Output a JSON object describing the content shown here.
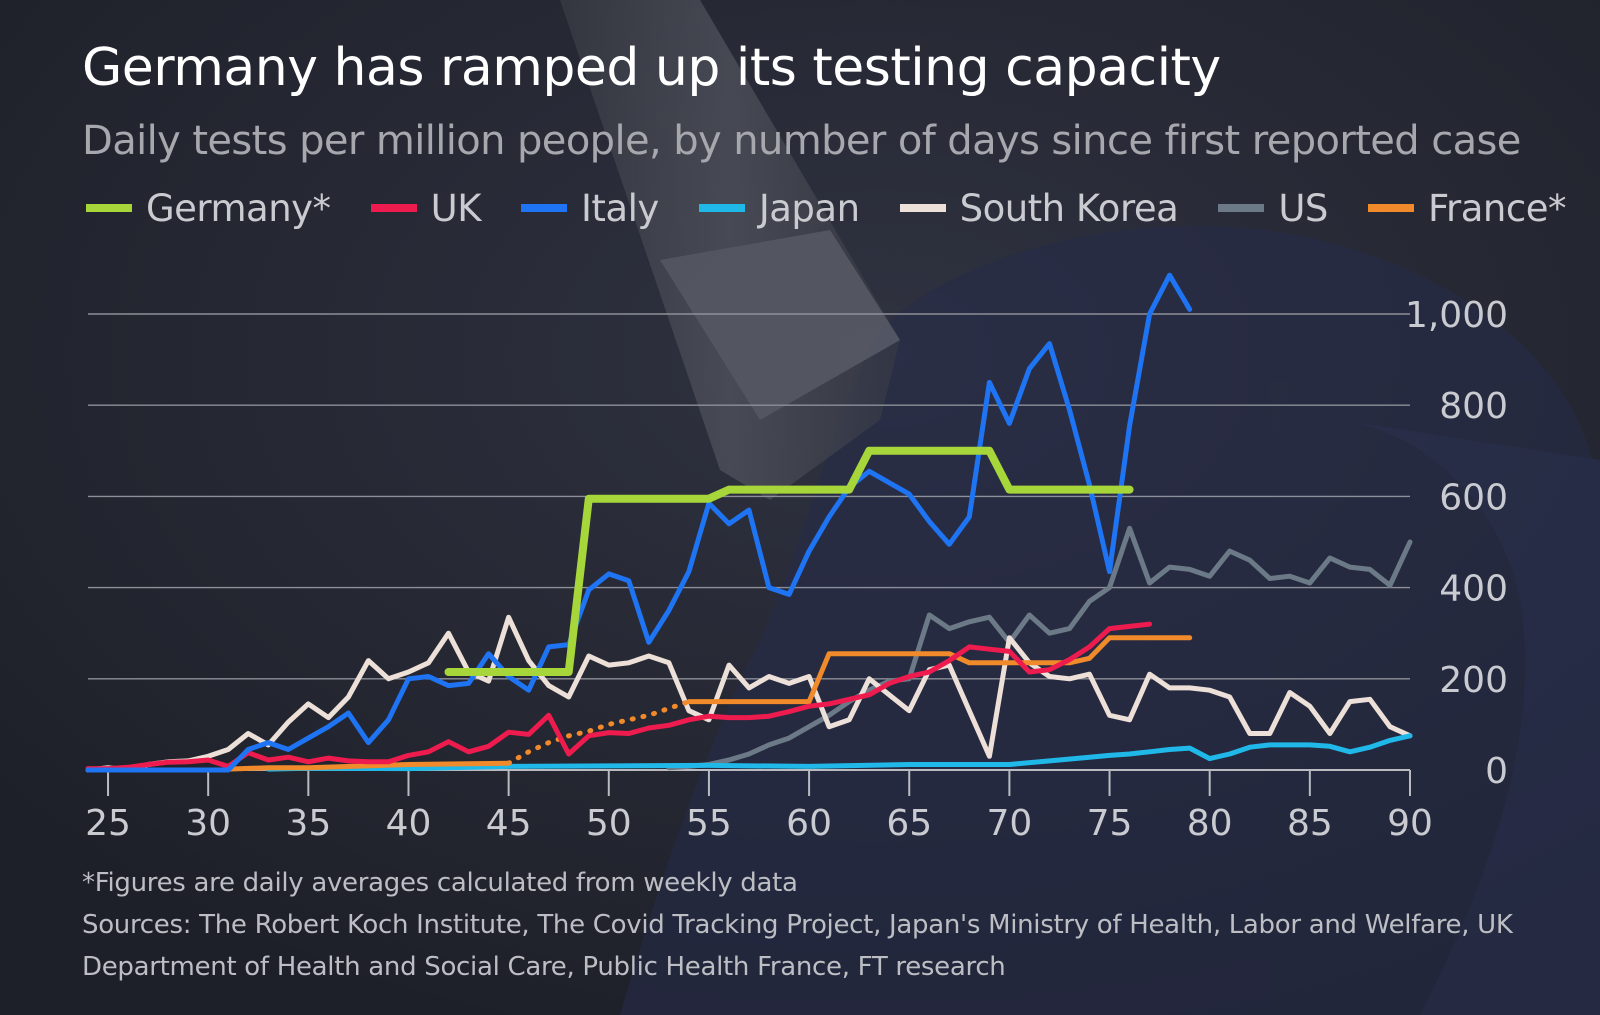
{
  "chart_data": {
    "type": "line",
    "title": "Germany has ramped up its testing capacity",
    "subtitle": "Daily tests per million people, by number of days since first reported case",
    "x_ticks": [
      25,
      30,
      35,
      40,
      45,
      50,
      55,
      60,
      65,
      70,
      75,
      80,
      85,
      90
    ],
    "y_ticks": [
      {
        "value": 0,
        "label": "0"
      },
      {
        "value": 200,
        "label": "200"
      },
      {
        "value": 400,
        "label": "400"
      },
      {
        "value": 600,
        "label": "600"
      },
      {
        "value": 800,
        "label": "800"
      },
      {
        "value": 1000,
        "label": "1,000"
      }
    ],
    "xlim": [
      24,
      90
    ],
    "ylim": [
      0,
      1000
    ],
    "legend_position": "top",
    "grid": true,
    "series": [
      {
        "name": "Germany*",
        "color": "#a6d63a",
        "x": [
          42,
          48,
          49,
          55,
          56,
          62,
          63,
          69,
          70,
          76
        ],
        "y": [
          215,
          215,
          595,
          595,
          615,
          615,
          700,
          700,
          615,
          615
        ]
      },
      {
        "name": "UK",
        "color": "#ee1c4e",
        "x": [
          24,
          25,
          26,
          27,
          28,
          29,
          30,
          31,
          32,
          33,
          34,
          35,
          36,
          37,
          38,
          39,
          40,
          41,
          42,
          43,
          44,
          45,
          46,
          47,
          48,
          49,
          50,
          51,
          52,
          53,
          54,
          55,
          56,
          57,
          58,
          59,
          60,
          61,
          62,
          63,
          64,
          65,
          66,
          67,
          68,
          69,
          70,
          71,
          72,
          73,
          74,
          75,
          76,
          77
        ],
        "y": [
          3,
          3,
          6,
          12,
          17,
          18,
          22,
          8,
          38,
          22,
          28,
          18,
          26,
          20,
          18,
          18,
          32,
          40,
          62,
          40,
          52,
          83,
          78,
          120,
          35,
          75,
          82,
          80,
          92,
          98,
          110,
          118,
          115,
          115,
          118,
          128,
          140,
          145,
          155,
          165,
          190,
          205,
          215,
          240,
          270,
          265,
          260,
          215,
          220,
          242,
          270,
          310,
          315,
          320
        ]
      },
      {
        "name": "Italy",
        "color": "#1e74f2",
        "x": [
          24,
          25,
          26,
          27,
          28,
          29,
          30,
          31,
          32,
          33,
          34,
          35,
          36,
          37,
          38,
          39,
          40,
          41,
          42,
          43,
          44,
          45,
          46,
          47,
          48,
          49,
          50,
          51,
          52,
          53,
          54,
          55,
          56,
          57,
          58,
          59,
          60,
          61,
          62,
          63,
          64,
          65,
          66,
          67,
          68,
          69,
          70,
          71,
          72,
          73,
          74,
          75,
          76,
          77,
          78,
          79
        ],
        "y": [
          0,
          0,
          0,
          0,
          0,
          0,
          0,
          0,
          45,
          60,
          45,
          70,
          95,
          125,
          60,
          110,
          200,
          205,
          185,
          190,
          255,
          205,
          175,
          270,
          275,
          395,
          430,
          415,
          280,
          350,
          435,
          585,
          540,
          570,
          400,
          385,
          480,
          555,
          620,
          655,
          630,
          605,
          545,
          495,
          555,
          850,
          760,
          880,
          935,
          790,
          625,
          435,
          755,
          1000,
          1085,
          1010
        ]
      },
      {
        "name": "Japan",
        "color": "#1fb8e8",
        "x": [
          33,
          35,
          40,
          45,
          50,
          55,
          60,
          65,
          70,
          72,
          74,
          75,
          76,
          77,
          78,
          79,
          80,
          81,
          82,
          83,
          84,
          85,
          86,
          87,
          88,
          89,
          90
        ],
        "y": [
          2,
          4,
          3,
          8,
          9,
          10,
          8,
          12,
          12,
          20,
          28,
          32,
          35,
          40,
          45,
          48,
          25,
          35,
          50,
          55,
          55,
          55,
          52,
          40,
          50,
          65,
          75
        ]
      },
      {
        "name": "South Korea",
        "color": "#ede0d8",
        "x": [
          24,
          25,
          26,
          27,
          28,
          29,
          30,
          31,
          32,
          33,
          34,
          35,
          36,
          37,
          38,
          39,
          40,
          41,
          42,
          43,
          44,
          45,
          46,
          47,
          48,
          49,
          50,
          51,
          52,
          53,
          54,
          55,
          56,
          57,
          58,
          59,
          60,
          61,
          62,
          63,
          64,
          65,
          66,
          67,
          68,
          69,
          70,
          71,
          72,
          73,
          74,
          75,
          76,
          77,
          78,
          79,
          80,
          81,
          82,
          83,
          84,
          85,
          86,
          87,
          88,
          89,
          90
        ],
        "y": [
          0,
          5,
          0,
          12,
          18,
          20,
          30,
          45,
          80,
          55,
          105,
          145,
          115,
          160,
          240,
          200,
          215,
          235,
          300,
          215,
          195,
          335,
          240,
          185,
          160,
          250,
          230,
          235,
          250,
          235,
          130,
          110,
          230,
          180,
          205,
          190,
          205,
          95,
          110,
          200,
          165,
          130,
          220,
          230,
          130,
          30,
          290,
          235,
          205,
          200,
          210,
          120,
          110,
          210,
          180,
          180,
          175,
          160,
          80,
          80,
          170,
          140,
          80,
          150,
          155,
          95,
          75
        ]
      },
      {
        "name": "US",
        "color": "#6c7a87",
        "x": [
          53,
          54,
          55,
          56,
          57,
          58,
          59,
          60,
          61,
          62,
          63,
          64,
          65,
          66,
          67,
          68,
          69,
          70,
          71,
          72,
          73,
          74,
          75,
          76,
          77,
          78,
          79,
          80,
          81,
          82,
          83,
          84,
          85,
          86,
          87,
          88,
          89,
          90
        ],
        "y": [
          5,
          8,
          12,
          22,
          35,
          55,
          70,
          95,
          120,
          150,
          175,
          195,
          200,
          340,
          310,
          325,
          335,
          280,
          340,
          300,
          310,
          370,
          400,
          530,
          410,
          445,
          440,
          425,
          480,
          460,
          420,
          425,
          410,
          465,
          445,
          440,
          405,
          500
        ]
      },
      {
        "name": "France*",
        "color": "#f08a2a",
        "x": [
          31,
          33,
          35,
          40,
          45,
          46,
          47,
          48,
          49,
          50,
          51,
          52,
          53,
          54,
          55,
          60,
          61,
          67,
          68,
          73,
          74,
          75,
          76,
          79
        ],
        "y": [
          2,
          5,
          5,
          12,
          15,
          40,
          60,
          75,
          85,
          100,
          110,
          120,
          135,
          150,
          150,
          150,
          255,
          255,
          235,
          235,
          245,
          290,
          290,
          290
        ],
        "dotted_x_range": [
          45,
          54
        ]
      }
    ]
  },
  "legend": [
    {
      "label": "Germany*",
      "color": "#a6d63a"
    },
    {
      "label": "UK",
      "color": "#ee1c4e"
    },
    {
      "label": "Italy",
      "color": "#1e74f2"
    },
    {
      "label": "Japan",
      "color": "#1fb8e8"
    },
    {
      "label": "South Korea",
      "color": "#ede0d8"
    },
    {
      "label": "US",
      "color": "#6c7a87"
    },
    {
      "label": "France*",
      "color": "#f08a2a"
    }
  ],
  "footnote": "*Figures are daily averages calculated from weekly data",
  "sources": "Sources: The Robert Koch Institute, The Covid Tracking Project, Japan's Ministry of Health, Labor and Welfare, UK Department of Health and Social Care, Public Health France, FT research"
}
